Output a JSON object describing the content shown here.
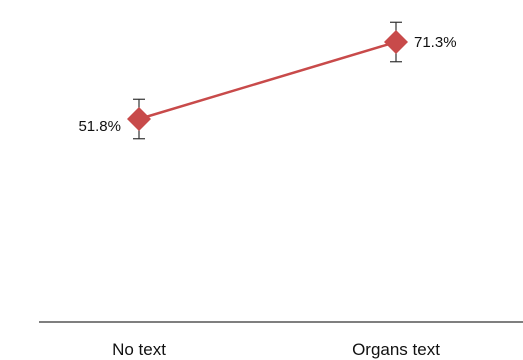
{
  "chart_data": {
    "type": "line",
    "categories": [
      "No text",
      "Organs text"
    ],
    "series": [
      {
        "values": [
          51.8,
          71.3
        ],
        "error_low": [
          46.8,
          66.3
        ],
        "error_high": [
          56.8,
          76.3
        ],
        "data_labels": [
          "51.8%",
          "71.3%"
        ]
      }
    ],
    "title": "",
    "xlabel": "",
    "ylabel": "",
    "ylim": [
      0,
      80
    ],
    "grid": false,
    "marker": "diamond",
    "colors": {
      "series": "#c84a4a",
      "marker": "#c84a4a",
      "error_bar": "#333333",
      "axis": "#333333"
    }
  }
}
